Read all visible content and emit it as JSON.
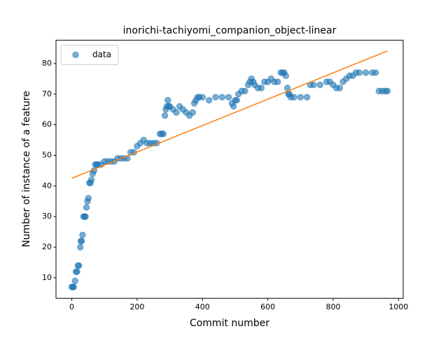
{
  "chart_data": {
    "type": "scatter",
    "title": "inorichi-tachiyomi_companion_object-linear",
    "x_label": "Commit number",
    "y_label": "Number of instance of a feature",
    "legend": "upper left",
    "xlim": [
      -48.3,
      1014.3
    ],
    "ylim": [
      3.3,
      87.6
    ],
    "xticks": [
      0,
      200,
      400,
      600,
      800,
      1000
    ],
    "yticks": [
      10,
      20,
      30,
      40,
      50,
      60,
      70,
      80
    ],
    "series": [
      {
        "name": "data",
        "color": "#1f77b4",
        "mode": "markers",
        "x": [
          0,
          3,
          6,
          10,
          13,
          16,
          19,
          22,
          26,
          28,
          30,
          33,
          36,
          39,
          42,
          45,
          48,
          51,
          54,
          57,
          60,
          64,
          68,
          72,
          76,
          80,
          90,
          100,
          110,
          120,
          130,
          140,
          150,
          160,
          170,
          180,
          190,
          200,
          210,
          220,
          230,
          240,
          250,
          260,
          270,
          275,
          280,
          285,
          288,
          291,
          294,
          297,
          300,
          310,
          320,
          330,
          340,
          350,
          360,
          370,
          375,
          380,
          385,
          390,
          400,
          420,
          440,
          460,
          480,
          490,
          495,
          500,
          505,
          510,
          520,
          530,
          540,
          545,
          550,
          555,
          560,
          570,
          580,
          590,
          600,
          610,
          620,
          630,
          640,
          645,
          650,
          655,
          660,
          663,
          666,
          670,
          680,
          700,
          720,
          730,
          740,
          760,
          780,
          790,
          800,
          810,
          820,
          830,
          840,
          850,
          860,
          870,
          880,
          900,
          920,
          930,
          940,
          950,
          960,
          966
        ],
        "values": [
          7,
          7,
          7,
          9,
          12,
          12,
          14,
          14,
          20,
          22,
          22,
          24,
          30,
          30,
          30,
          33,
          35,
          36,
          41,
          41,
          42,
          44,
          45,
          47,
          47,
          47,
          47,
          48,
          48,
          48,
          48,
          49,
          49,
          49,
          49,
          51,
          51,
          53,
          54,
          55,
          54,
          54,
          54,
          54,
          57,
          57,
          57,
          63,
          65,
          66,
          68,
          66,
          66,
          65,
          64,
          66,
          65,
          64,
          63,
          64,
          67,
          68,
          69,
          69,
          69,
          68,
          69,
          69,
          69,
          67,
          66,
          68,
          68,
          70,
          71,
          71,
          73,
          74,
          75,
          74,
          73,
          72,
          72,
          74,
          74,
          75,
          74,
          74,
          77,
          77,
          77,
          76,
          72,
          70,
          70,
          69,
          69,
          69,
          69,
          73,
          73,
          73,
          74,
          74,
          73,
          72,
          72,
          74,
          75,
          76,
          76,
          77,
          77,
          77,
          77,
          77,
          71,
          71,
          71,
          71
        ]
      },
      {
        "color": "#ff7f0e",
        "mode": "line",
        "x": [
          0,
          966
        ],
        "values": [
          42.5,
          84.1
        ]
      }
    ]
  }
}
